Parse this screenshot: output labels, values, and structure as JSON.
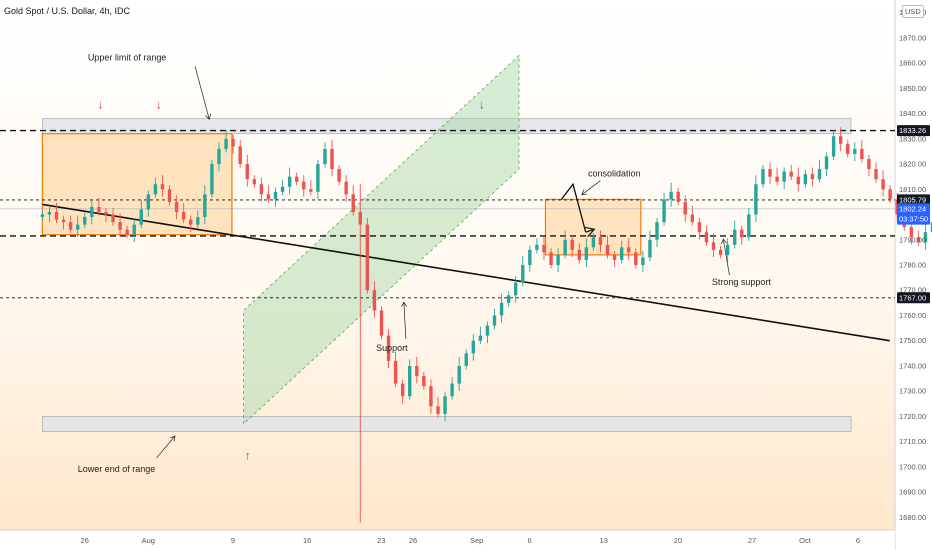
{
  "header": {
    "symbol": "Gold Spot / U.S. Dollar, 4h, IDC",
    "currency": "USD"
  },
  "chart_data": {
    "type": "candlestick",
    "title": "Gold Spot / U.S. Dollar, 4h, IDC",
    "ylim": [
      1675,
      1885
    ],
    "y_ticks": [
      1680,
      1690,
      1700,
      1710,
      1720,
      1730,
      1740,
      1750,
      1760,
      1770,
      1780,
      1790,
      1800,
      1810,
      1820,
      1830,
      1840,
      1850,
      1860,
      1870,
      1880
    ],
    "x_ticks": [
      {
        "label": "26",
        "day": 26
      },
      {
        "label": "Aug",
        "day": 32
      },
      {
        "label": "9",
        "day": 40
      },
      {
        "label": "16",
        "day": 47
      },
      {
        "label": "23",
        "day": 54
      },
      {
        "label": "26",
        "day": 57
      },
      {
        "label": "Sep",
        "day": 63
      },
      {
        "label": "6",
        "day": 68
      },
      {
        "label": "13",
        "day": 75
      },
      {
        "label": "20",
        "day": 82
      },
      {
        "label": "27",
        "day": 89
      },
      {
        "label": "Oct",
        "day": 94
      },
      {
        "label": "6",
        "day": 99
      }
    ],
    "price_tags": [
      {
        "label": "1833.26",
        "value": 1833.26,
        "bg": "#131722",
        "fg": "#ffffff"
      },
      {
        "label": "1805.79",
        "value": 1805.79,
        "bg": "#131722",
        "fg": "#ffffff"
      },
      {
        "label": "1802.24",
        "value": 1802.24,
        "bg": "#2962ff",
        "fg": "#ffffff"
      },
      {
        "label": "03:37:50",
        "value": 1798.2,
        "bg": "#2962ff",
        "fg": "#ffffff"
      },
      {
        "label": "1767.00",
        "value": 1767.0,
        "bg": "#131722",
        "fg": "#ffffff"
      }
    ],
    "levels": [
      {
        "name": "upper-limit-line",
        "value": 1833.26,
        "style": "dashed"
      },
      {
        "name": "strong-support-line",
        "value": 1791.5,
        "style": "dashed"
      },
      {
        "name": "support-line",
        "value": 1767.0,
        "style": "dashed-thin"
      },
      {
        "name": "consolidation-top-line",
        "value": 1805.79,
        "style": "dashed-thin"
      }
    ],
    "zones": [
      {
        "name": "upper-range-zone",
        "day_start": 22,
        "day_end": 100,
        "y_top": 1838,
        "y_bottom": 1832,
        "fill": "#e3e4e8"
      },
      {
        "name": "lower-range-zone",
        "day_start": 22,
        "day_end": 100,
        "y_top": 1720,
        "y_bottom": 1714,
        "fill": "#e3e4e8"
      },
      {
        "name": "previous-range-box",
        "day_start": 22,
        "day_end": 39.9,
        "y_top": 1832,
        "y_bottom": 1792,
        "fill": "#ffd9a8",
        "stroke": "#f57c00"
      },
      {
        "name": "consolidation-box",
        "day_start": 69.5,
        "day_end": 78.5,
        "y_top": 1806,
        "y_bottom": 1784,
        "fill": "#ffd9a8",
        "stroke": "#f57c00"
      }
    ],
    "channel": {
      "points": [
        {
          "day": 41,
          "value": 1717
        },
        {
          "day": 41,
          "value": 1762
        },
        {
          "day": 67,
          "value": 1863
        },
        {
          "day": 67,
          "value": 1818
        }
      ],
      "fill": "#a5d6a7"
    },
    "trendline": {
      "start": {
        "day": 22,
        "value": 1804
      },
      "end": {
        "day": 102,
        "value": 1750
      }
    },
    "candles_start_day": 22,
    "candles_step": 0.667,
    "closes": [
      1800,
      1801,
      1798,
      1797,
      1794,
      1796,
      1799,
      1803,
      1801,
      1800,
      1797,
      1794,
      1792,
      1796,
      1802,
      1808,
      1812,
      1810,
      1805,
      1801,
      1798,
      1796,
      1799,
      1808,
      1820,
      1826,
      1830,
      1827,
      1820,
      1814,
      1812,
      1808,
      1806,
      1809,
      1811,
      1815,
      1813,
      1810,
      1809,
      1820,
      1826,
      1818,
      1813,
      1808,
      1801,
      1796,
      1770,
      1762,
      1752,
      1742,
      1733,
      1728,
      1740,
      1736,
      1732,
      1724,
      1721,
      1728,
      1733,
      1740,
      1745,
      1750,
      1752,
      1756,
      1760,
      1765,
      1768,
      1773,
      1780,
      1786,
      1788,
      1785,
      1780,
      1784,
      1790,
      1786,
      1782,
      1787,
      1791,
      1788,
      1784,
      1782,
      1787,
      1785,
      1780,
      1783,
      1790,
      1797,
      1806,
      1809,
      1805,
      1800,
      1797,
      1793,
      1789,
      1786,
      1784,
      1788,
      1794,
      1791,
      1800,
      1812,
      1818,
      1815,
      1813,
      1817,
      1815,
      1812,
      1816,
      1814,
      1818,
      1823,
      1831,
      1828,
      1824,
      1826,
      1822,
      1818,
      1814,
      1810,
      1806,
      1800,
      1795,
      1791,
      1789,
      1793,
      1797,
      1794,
      1790,
      1792,
      1796,
      1791,
      1795,
      1798,
      1794,
      1790,
      1793,
      1796,
      1792,
      1790,
      1794,
      1805,
      1802,
      1804
    ],
    "annotations": [
      {
        "text": "Upper limit of range",
        "day": 30,
        "value": 1861
      },
      {
        "text": "consolidation",
        "day": 76,
        "value": 1815
      },
      {
        "text": "Strong support",
        "day": 88,
        "value": 1772
      },
      {
        "text": "Support",
        "day": 55,
        "value": 1746
      },
      {
        "text": "Lower end of range",
        "day": 29,
        "value": 1698
      }
    ]
  }
}
